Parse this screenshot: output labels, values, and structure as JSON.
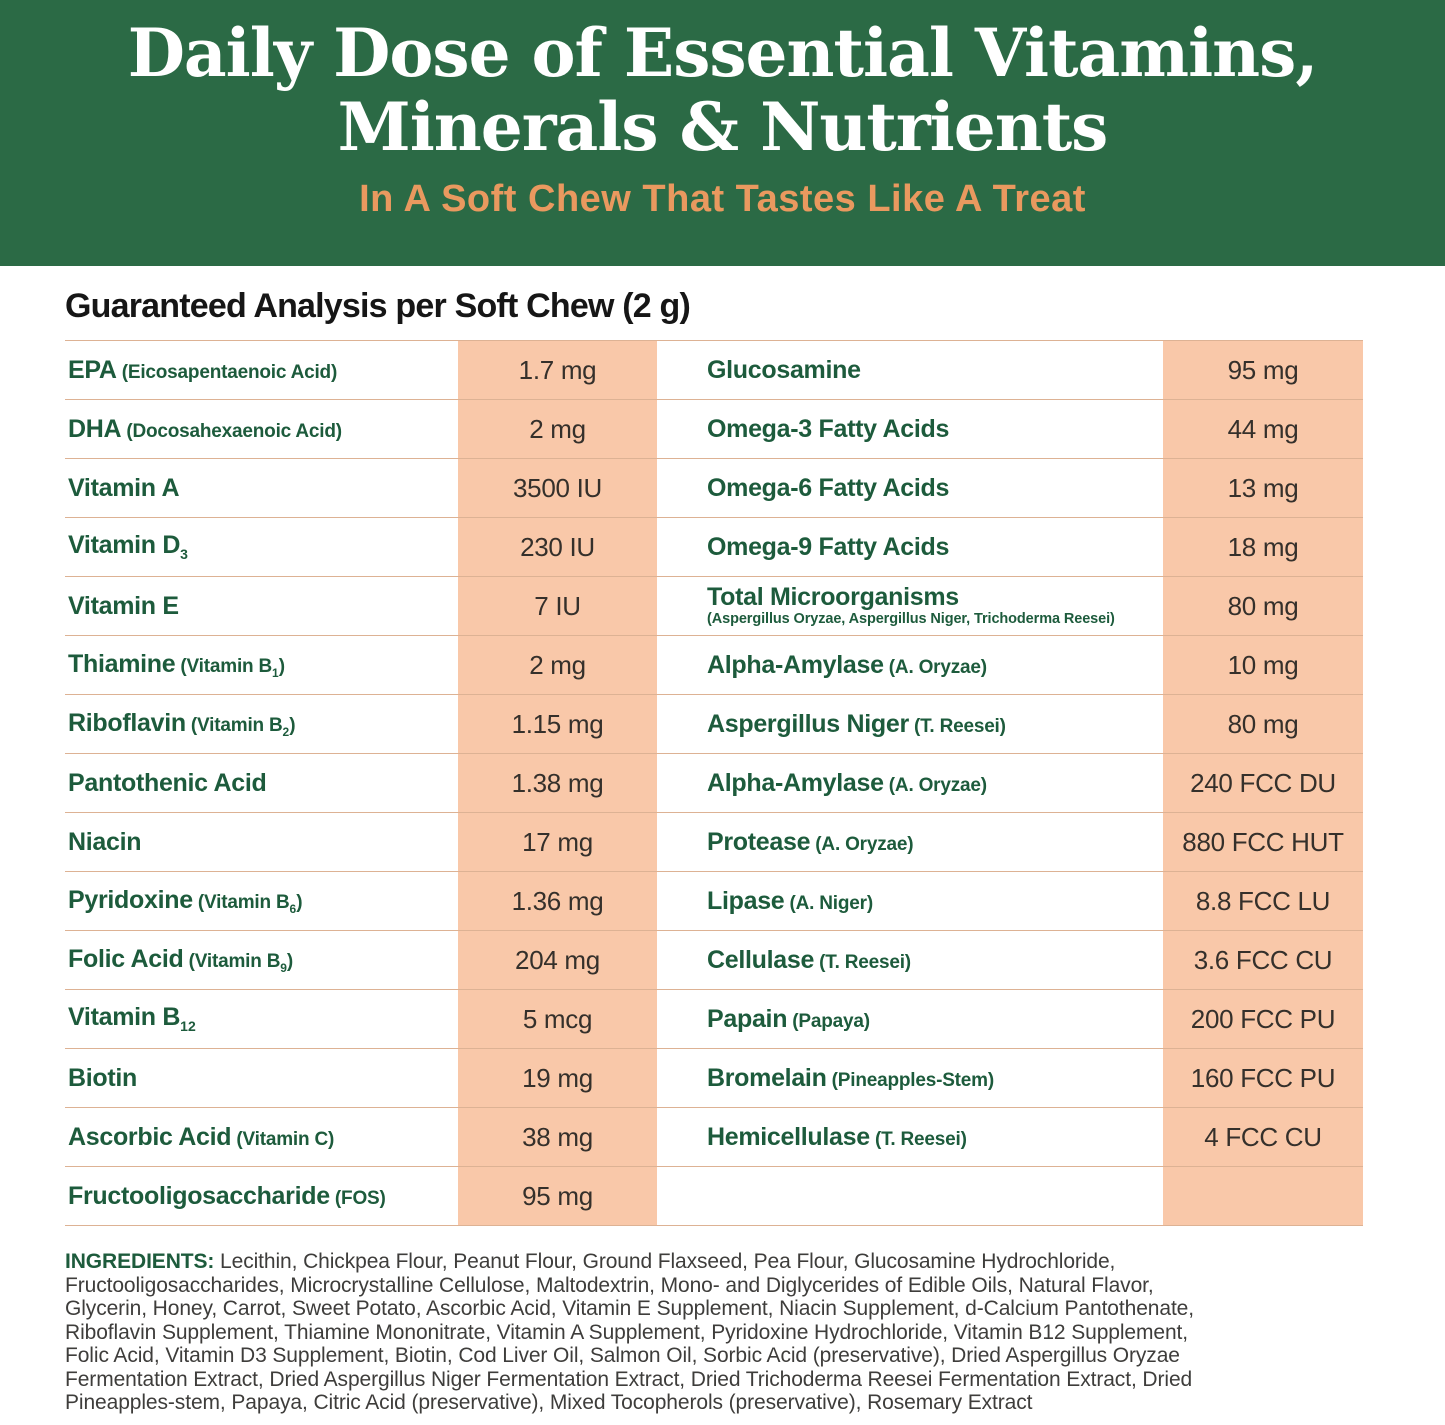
{
  "banner": {
    "title_line1": "Daily Dose of Essential Vitamins,",
    "title_line2": "Minerals & Nutrients",
    "subtitle": "In A Soft Chew That Tastes Like A Treat"
  },
  "analysis_heading": "Guaranteed Analysis per Soft Chew (2 g)",
  "table": {
    "rows": [
      {
        "left": {
          "segments": [
            {
              "t": "EPA",
              "k": "n"
            },
            {
              "t": " (Eicosapentaenoic Acid)",
              "k": "s"
            }
          ],
          "value": "1.7 mg"
        },
        "right": {
          "segments": [
            {
              "t": "Glucosamine",
              "k": "n"
            }
          ],
          "value": "95 mg"
        }
      },
      {
        "left": {
          "segments": [
            {
              "t": "DHA",
              "k": "n"
            },
            {
              "t": " (Docosahexaenoic Acid)",
              "k": "s"
            }
          ],
          "value": "2 mg"
        },
        "right": {
          "segments": [
            {
              "t": "Omega-3 Fatty Acids",
              "k": "n"
            }
          ],
          "value": "44 mg"
        }
      },
      {
        "left": {
          "segments": [
            {
              "t": "Vitamin A",
              "k": "n"
            }
          ],
          "value": "3500 IU"
        },
        "right": {
          "segments": [
            {
              "t": "Omega-6 Fatty Acids",
              "k": "n"
            }
          ],
          "value": "13 mg"
        }
      },
      {
        "left": {
          "segments": [
            {
              "t": "Vitamin D",
              "k": "n"
            },
            {
              "t": "3",
              "k": "nsub"
            }
          ],
          "value": "230 IU"
        },
        "right": {
          "segments": [
            {
              "t": "Omega-9 Fatty Acids",
              "k": "n"
            }
          ],
          "value": "18 mg"
        }
      },
      {
        "left": {
          "segments": [
            {
              "t": "Vitamin E",
              "k": "n"
            }
          ],
          "value": "7 IU"
        },
        "right": {
          "segments": [
            {
              "t": "Total Microorganisms",
              "k": "n"
            }
          ],
          "note": "(Aspergillus Oryzae, Aspergillus Niger, Trichoderma Reesei)",
          "value": "80 mg"
        }
      },
      {
        "left": {
          "segments": [
            {
              "t": "Thiamine",
              "k": "n"
            },
            {
              "t": " (Vitamin B",
              "k": "s"
            },
            {
              "t": "1",
              "k": "ssub"
            },
            {
              "t": ")",
              "k": "s"
            }
          ],
          "value": "2 mg"
        },
        "right": {
          "segments": [
            {
              "t": "Alpha-Amylase",
              "k": "n"
            },
            {
              "t": " (A. Oryzae)",
              "k": "s"
            }
          ],
          "value": "10 mg"
        }
      },
      {
        "left": {
          "segments": [
            {
              "t": "Riboflavin",
              "k": "n"
            },
            {
              "t": " (Vitamin B",
              "k": "s"
            },
            {
              "t": "2",
              "k": "ssub"
            },
            {
              "t": ")",
              "k": "s"
            }
          ],
          "value": "1.15 mg"
        },
        "right": {
          "segments": [
            {
              "t": "Aspergillus Niger",
              "k": "n"
            },
            {
              "t": " (T. Reesei)",
              "k": "s"
            }
          ],
          "value": "80 mg"
        }
      },
      {
        "left": {
          "segments": [
            {
              "t": "Pantothenic Acid",
              "k": "n"
            }
          ],
          "value": "1.38 mg"
        },
        "right": {
          "segments": [
            {
              "t": "Alpha-Amylase",
              "k": "n"
            },
            {
              "t": " (A. Oryzae)",
              "k": "s"
            }
          ],
          "value": "240 FCC DU"
        }
      },
      {
        "left": {
          "segments": [
            {
              "t": "Niacin",
              "k": "n"
            }
          ],
          "value": "17 mg"
        },
        "right": {
          "segments": [
            {
              "t": "Protease",
              "k": "n"
            },
            {
              "t": " (A. Oryzae)",
              "k": "s"
            }
          ],
          "value": "880 FCC HUT"
        }
      },
      {
        "left": {
          "segments": [
            {
              "t": "Pyridoxine",
              "k": "n"
            },
            {
              "t": " (Vitamin B",
              "k": "s"
            },
            {
              "t": "6",
              "k": "ssub"
            },
            {
              "t": ")",
              "k": "s"
            }
          ],
          "value": "1.36 mg"
        },
        "right": {
          "segments": [
            {
              "t": "Lipase",
              "k": "n"
            },
            {
              "t": " (A. Niger)",
              "k": "s"
            }
          ],
          "value": "8.8 FCC LU"
        }
      },
      {
        "left": {
          "segments": [
            {
              "t": "Folic Acid",
              "k": "n"
            },
            {
              "t": " (Vitamin B",
              "k": "s"
            },
            {
              "t": "9",
              "k": "ssub"
            },
            {
              "t": ")",
              "k": "s"
            }
          ],
          "value": "204 mg"
        },
        "right": {
          "segments": [
            {
              "t": "Cellulase",
              "k": "n"
            },
            {
              "t": " (T. Reesei)",
              "k": "s"
            }
          ],
          "value": "3.6 FCC CU"
        }
      },
      {
        "left": {
          "segments": [
            {
              "t": "Vitamin B",
              "k": "n"
            },
            {
              "t": "12",
              "k": "nsub"
            }
          ],
          "value": "5 mcg"
        },
        "right": {
          "segments": [
            {
              "t": "Papain",
              "k": "n"
            },
            {
              "t": " (Papaya)",
              "k": "s"
            }
          ],
          "value": "200 FCC PU"
        }
      },
      {
        "left": {
          "segments": [
            {
              "t": "Biotin",
              "k": "n"
            }
          ],
          "value": "19 mg"
        },
        "right": {
          "segments": [
            {
              "t": "Bromelain",
              "k": "n"
            },
            {
              "t": " (Pineapples-Stem)",
              "k": "s"
            }
          ],
          "value": "160 FCC PU"
        }
      },
      {
        "left": {
          "segments": [
            {
              "t": "Ascorbic Acid",
              "k": "n"
            },
            {
              "t": " (Vitamin C)",
              "k": "s"
            }
          ],
          "value": "38 mg"
        },
        "right": {
          "segments": [
            {
              "t": "Hemicellulase",
              "k": "n"
            },
            {
              "t": " (T. Reesei)",
              "k": "s"
            }
          ],
          "value": "4 FCC CU"
        }
      },
      {
        "left": {
          "segments": [
            {
              "t": "Fructooligosaccharide",
              "k": "n"
            },
            {
              "t": " (FOS)",
              "k": "s"
            }
          ],
          "value": "95 mg"
        },
        "right": {
          "segments": [],
          "value": ""
        }
      }
    ]
  },
  "ingredients": {
    "label": "INGREDIENTS:",
    "lines": [
      "Lecithin, Chickpea Flour, Peanut Flour, Ground Flaxseed, Pea Flour, Glucosamine Hydrochloride,",
      "Fructooligosaccharides, Microcrystalline Cellulose, Maltodextrin, Mono- and Diglycerides of Edible Oils, Natural Flavor,",
      "Glycerin, Honey, Carrot, Sweet Potato, Ascorbic Acid, Vitamin E Supplement, Niacin Supplement, d-Calcium Pantothenate,",
      "Riboflavin Supplement, Thiamine Mononitrate, Vitamin A Supplement, Pyridoxine Hydrochloride, Vitamin B12 Supplement,",
      "Folic Acid, Vitamin D3 Supplement, Biotin, Cod Liver Oil, Salmon Oil, Sorbic Acid (preservative), Dried Aspergillus Oryzae",
      "Fermentation Extract, Dried Aspergillus Niger Fermentation Extract, Dried Trichoderma Reesei Fermentation Extract, Dried",
      "Pineapples-stem, Papaya, Citric Acid (preservative), Mixed Tocopherols (preservative), Rosemary Extract"
    ]
  },
  "colors": {
    "banner_green": "#2b6a45",
    "title_white": "#ffffff",
    "subtitle_orange": "#e9995f",
    "nutrient_green": "#1d5b3c",
    "value_cell_peach": "#f9c8a9",
    "divider_tan": "#ddb294",
    "value_text": "#35302b",
    "body_text": "#3e3d3b",
    "heading_text": "#161616"
  }
}
